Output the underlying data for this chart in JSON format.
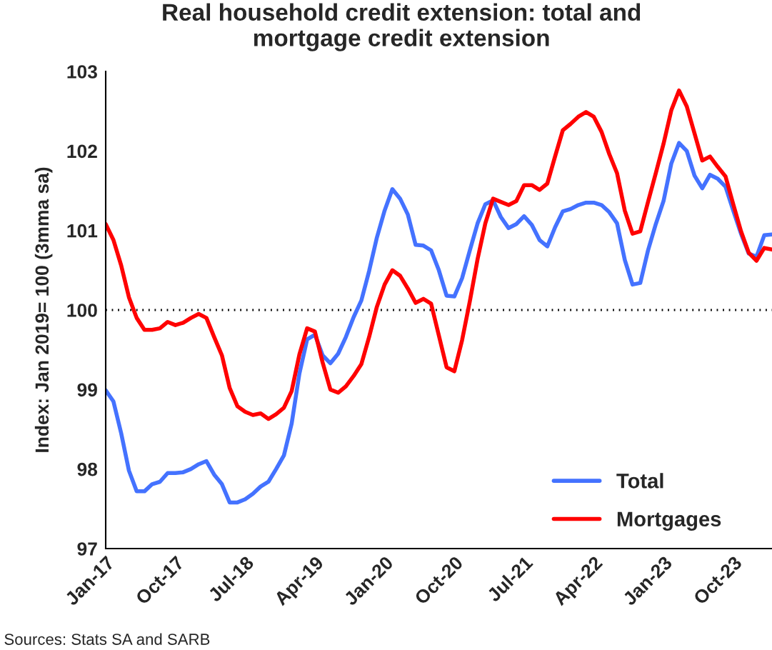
{
  "chart_data": {
    "type": "line",
    "title": "Real household credit extension: total and\nmortgage credit extension",
    "ylabel": "Index: Jan 2019= 100 (3mma sa)",
    "categories": [
      "Jan-17",
      null,
      null,
      null,
      null,
      null,
      null,
      null,
      null,
      "Oct-17",
      null,
      null,
      null,
      null,
      null,
      null,
      null,
      null,
      "Jul-18",
      null,
      null,
      null,
      null,
      null,
      null,
      null,
      null,
      "Apr-19",
      null,
      null,
      null,
      null,
      null,
      null,
      null,
      null,
      "Jan-20",
      null,
      null,
      null,
      null,
      null,
      null,
      null,
      null,
      "Oct-20",
      null,
      null,
      null,
      null,
      null,
      null,
      null,
      null,
      "Jul-21",
      null,
      null,
      null,
      null,
      null,
      null,
      null,
      null,
      "Apr-22",
      null,
      null,
      null,
      null,
      null,
      null,
      null,
      null,
      "Jan-23",
      null,
      null,
      null,
      null,
      null,
      null,
      null,
      null,
      "Oct-23",
      null,
      null,
      null,
      null,
      null
    ],
    "series": [
      {
        "name": "Total",
        "color": "#4472ff",
        "values": [
          98.99,
          98.85,
          98.45,
          97.98,
          97.72,
          97.72,
          97.81,
          97.84,
          97.95,
          97.95,
          97.96,
          98.0,
          98.06,
          98.1,
          97.93,
          97.81,
          97.58,
          97.58,
          97.62,
          97.69,
          97.78,
          97.84,
          98.0,
          98.17,
          98.57,
          99.2,
          99.63,
          99.69,
          99.43,
          99.33,
          99.45,
          99.66,
          99.91,
          100.12,
          100.49,
          100.91,
          101.25,
          101.52,
          101.4,
          101.2,
          100.82,
          100.81,
          100.75,
          100.5,
          100.18,
          100.17,
          100.4,
          100.75,
          101.09,
          101.33,
          101.38,
          101.17,
          101.03,
          101.08,
          101.18,
          101.07,
          100.88,
          100.8,
          101.04,
          101.24,
          101.27,
          101.32,
          101.35,
          101.35,
          101.32,
          101.23,
          101.09,
          100.63,
          100.32,
          100.34,
          100.75,
          101.08,
          101.37,
          101.84,
          102.1,
          102.0,
          101.69,
          101.53,
          101.7,
          101.65,
          101.55,
          101.25,
          100.96,
          100.71,
          100.67,
          100.94,
          100.95
        ]
      },
      {
        "name": "Mortgages",
        "color": "#ff0000",
        "values": [
          101.08,
          100.88,
          100.56,
          100.16,
          99.9,
          99.75,
          99.75,
          99.77,
          99.85,
          99.81,
          99.84,
          99.9,
          99.95,
          99.9,
          99.66,
          99.43,
          99.02,
          98.79,
          98.72,
          98.68,
          98.7,
          98.63,
          98.69,
          98.77,
          98.98,
          99.44,
          99.77,
          99.73,
          99.34,
          99.0,
          98.96,
          99.04,
          99.17,
          99.32,
          99.66,
          100.04,
          100.32,
          100.5,
          100.43,
          100.27,
          100.09,
          100.14,
          100.08,
          99.68,
          99.28,
          99.23,
          99.62,
          100.11,
          100.64,
          101.09,
          101.4,
          101.36,
          101.32,
          101.37,
          101.57,
          101.57,
          101.51,
          101.59,
          101.93,
          102.26,
          102.34,
          102.43,
          102.49,
          102.43,
          102.24,
          101.96,
          101.72,
          101.25,
          100.96,
          100.99,
          101.36,
          101.72,
          102.09,
          102.51,
          102.76,
          102.56,
          102.22,
          101.88,
          101.93,
          101.8,
          101.68,
          101.33,
          100.99,
          100.72,
          100.62,
          100.78,
          100.76
        ]
      }
    ],
    "ylim": [
      97,
      103
    ],
    "yticks": [
      97,
      98,
      99,
      100,
      101,
      102,
      103
    ],
    "ref_lines": [
      {
        "axis": "y",
        "value": 100,
        "color": "#000000",
        "line_style": "dotted"
      }
    ],
    "legend": "bottom right",
    "grid": false,
    "line_style": "solid",
    "marker": "none",
    "annotations": [
      "Sources: Stats SA and SARB"
    ]
  }
}
